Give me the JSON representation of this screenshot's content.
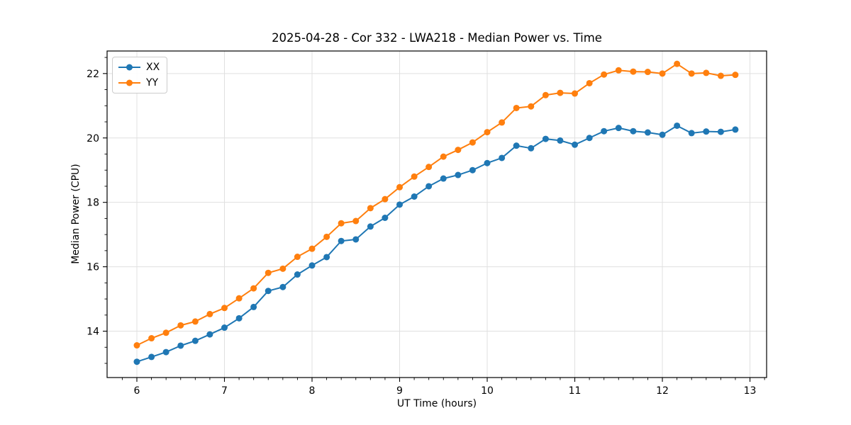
{
  "chart_data": {
    "type": "line",
    "title": "2025-04-28 - Cor 332 - LWA218 - Median Power vs. Time",
    "xlabel": "UT Time (hours)",
    "ylabel": "Median Power (CPU)",
    "xlim": [
      5.66,
      13.19
    ],
    "ylim": [
      12.56,
      22.7
    ],
    "xticks": [
      6,
      7,
      8,
      9,
      10,
      11,
      12,
      13
    ],
    "yticks": [
      14,
      16,
      18,
      20,
      22
    ],
    "minor_x_step": 0.1666667,
    "minor_y_step": 0.5,
    "grid": true,
    "grid_color": "#e0e0e0",
    "spine_color": "#000000",
    "legend_position": "upper-left",
    "x": [
      6.0,
      6.167,
      6.333,
      6.5,
      6.667,
      6.833,
      7.0,
      7.167,
      7.333,
      7.5,
      7.667,
      7.833,
      8.0,
      8.167,
      8.333,
      8.5,
      8.667,
      8.833,
      9.0,
      9.167,
      9.333,
      9.5,
      9.667,
      9.833,
      10.0,
      10.167,
      10.333,
      10.5,
      10.667,
      10.833,
      11.0,
      11.167,
      11.333,
      11.5,
      11.667,
      11.833,
      12.0,
      12.167,
      12.333,
      12.5,
      12.667,
      12.833
    ],
    "series": [
      {
        "name": "XX",
        "color": "#1f77b4",
        "values": [
          13.05,
          13.2,
          13.35,
          13.55,
          13.7,
          13.9,
          14.11,
          14.4,
          14.75,
          15.25,
          15.37,
          15.76,
          16.04,
          16.3,
          16.8,
          16.85,
          17.25,
          17.52,
          17.93,
          18.18,
          18.5,
          18.74,
          18.85,
          19.0,
          19.22,
          19.38,
          19.76,
          19.68,
          19.97,
          19.92,
          19.79,
          20.0,
          20.21,
          20.31,
          20.21,
          20.17,
          20.1,
          20.38,
          20.15,
          20.2,
          20.19,
          20.26
        ]
      },
      {
        "name": "YY",
        "color": "#ff7f0e",
        "values": [
          13.56,
          13.78,
          13.95,
          14.18,
          14.3,
          14.53,
          14.72,
          15.02,
          15.33,
          15.81,
          15.94,
          16.31,
          16.56,
          16.93,
          17.35,
          17.42,
          17.82,
          18.1,
          18.47,
          18.8,
          19.1,
          19.42,
          19.63,
          19.86,
          20.18,
          20.48,
          20.93,
          20.98,
          21.33,
          21.4,
          21.38,
          21.7,
          21.97,
          22.1,
          22.06,
          22.05,
          22.0,
          22.3,
          22.0,
          22.02,
          21.93,
          21.96
        ]
      }
    ]
  }
}
